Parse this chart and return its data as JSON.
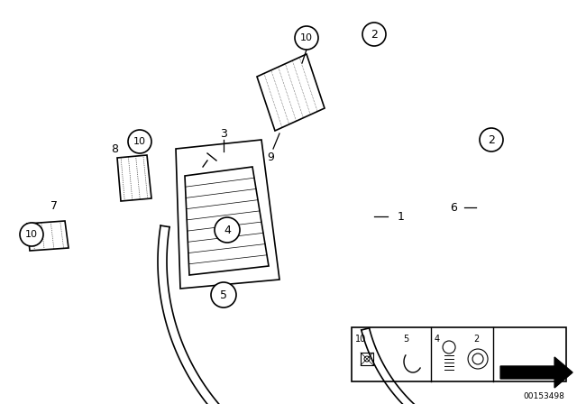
{
  "bg_color": "#ffffff",
  "fig_width": 6.4,
  "fig_height": 4.48,
  "part_number": "00153498",
  "line_color": "#000000"
}
